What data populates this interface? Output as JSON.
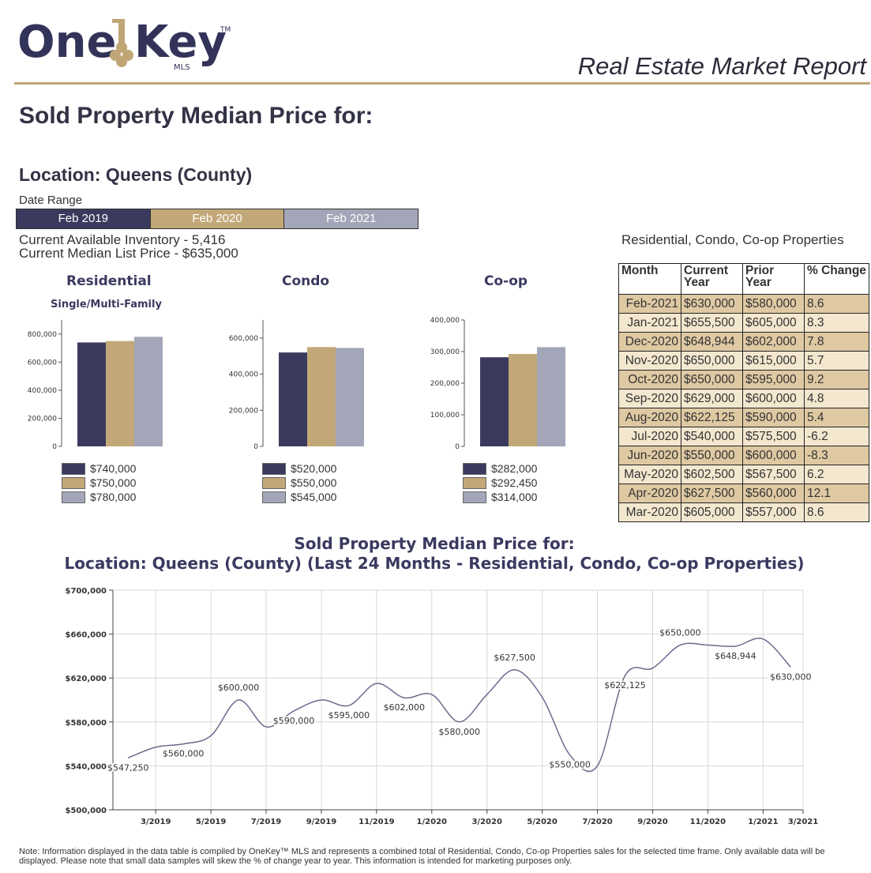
{
  "header": {
    "logo_text": "One Key",
    "logo_tm": "TM",
    "logo_mls": "MLS",
    "report_title": "Real Estate Market Report"
  },
  "main_title": "Sold Property Median Price for:",
  "location": "Location: Queens (County)",
  "date_range": {
    "label": "Date Range",
    "periods": [
      "Feb 2019",
      "Feb 2020",
      "Feb 2021"
    ],
    "colors": [
      "#3b3a5e",
      "#c2a878",
      "#a3a6b8"
    ]
  },
  "inventory": {
    "available": "Current Available Inventory - 5,416",
    "median_list": "Current Median List Price - $635,000"
  },
  "table": {
    "caption": "Residential, Condo, Co-op Properties",
    "headers": [
      "Month",
      "Current Year",
      "Prior Year",
      "% Change"
    ],
    "rows": [
      [
        "Feb-2021",
        "$630,000",
        "$580,000",
        "8.6"
      ],
      [
        "Jan-2021",
        "$655,500",
        "$605,000",
        "8.3"
      ],
      [
        "Dec-2020",
        "$648,944",
        "$602,000",
        "7.8"
      ],
      [
        "Nov-2020",
        "$650,000",
        "$615,000",
        "5.7"
      ],
      [
        "Oct-2020",
        "$650,000",
        "$595,000",
        "9.2"
      ],
      [
        "Sep-2020",
        "$629,000",
        "$600,000",
        "4.8"
      ],
      [
        "Aug-2020",
        "$622,125",
        "$590,000",
        "5.4"
      ],
      [
        "Jul-2020",
        "$540,000",
        "$575,500",
        "-6.2"
      ],
      [
        "Jun-2020",
        "$550,000",
        "$600,000",
        "-8.3"
      ],
      [
        "May-2020",
        "$602,500",
        "$567,500",
        "6.2"
      ],
      [
        "Apr-2020",
        "$627,500",
        "$560,000",
        "12.1"
      ],
      [
        "Mar-2020",
        "$605,000",
        "$557,000",
        "8.6"
      ]
    ]
  },
  "chart_data": [
    {
      "type": "bar",
      "title": "Residential",
      "subtitle": "Single/Multi-Family",
      "categories": [
        "Feb 2019",
        "Feb 2020",
        "Feb 2021"
      ],
      "values": [
        740000,
        750000,
        780000
      ],
      "legend_labels": [
        "$740,000",
        "$750,000",
        "$780,000"
      ],
      "ylim": [
        0,
        900000
      ],
      "yticks": [
        0,
        200000,
        400000,
        600000,
        800000
      ],
      "ytick_labels": [
        "0",
        "200,000",
        "400,000",
        "600,000",
        "800,000"
      ]
    },
    {
      "type": "bar",
      "title": "Condo",
      "subtitle": "",
      "categories": [
        "Feb 2019",
        "Feb 2020",
        "Feb 2021"
      ],
      "values": [
        520000,
        550000,
        545000
      ],
      "legend_labels": [
        "$520,000",
        "$550,000",
        "$545,000"
      ],
      "ylim": [
        0,
        700000
      ],
      "yticks": [
        0,
        200000,
        400000,
        600000
      ],
      "ytick_labels": [
        "0",
        "200,000",
        "400,000",
        "600,000"
      ]
    },
    {
      "type": "bar",
      "title": "Co-op",
      "subtitle": "",
      "categories": [
        "Feb 2019",
        "Feb 2020",
        "Feb 2021"
      ],
      "values": [
        282000,
        292450,
        314000
      ],
      "legend_labels": [
        "$282,000",
        "$292,450",
        "$314,000"
      ],
      "ylim": [
        0,
        400000
      ],
      "yticks": [
        0,
        100000,
        200000,
        300000,
        400000
      ],
      "ytick_labels": [
        "0",
        "100,000",
        "200,000",
        "300,000",
        "400,000"
      ]
    },
    {
      "type": "line",
      "title": "Sold Property Median Price for:",
      "subtitle": "Location: Queens (County) (Last 24 Months - Residential, Condo, Co-op Properties)",
      "x": [
        "2/2019",
        "3/2019",
        "4/2019",
        "5/2019",
        "6/2019",
        "7/2019",
        "8/2019",
        "9/2019",
        "10/2019",
        "11/2019",
        "12/2019",
        "1/2020",
        "2/2020",
        "3/2020",
        "4/2020",
        "5/2020",
        "6/2020",
        "7/2020",
        "8/2020",
        "9/2020",
        "10/2020",
        "11/2020",
        "12/2020",
        "1/2021",
        "2/2021"
      ],
      "values": [
        547250,
        557000,
        560000,
        567500,
        600000,
        575500,
        590000,
        600000,
        595000,
        615000,
        602000,
        605000,
        580000,
        605000,
        627500,
        602500,
        550000,
        540000,
        622125,
        629000,
        650000,
        650000,
        648944,
        655500,
        630000
      ],
      "point_labels": [
        {
          "i": 0,
          "text": "$547,250"
        },
        {
          "i": 2,
          "text": "$560,000"
        },
        {
          "i": 4,
          "text": "$600,000"
        },
        {
          "i": 6,
          "text": "$590,000"
        },
        {
          "i": 8,
          "text": "$595,000"
        },
        {
          "i": 10,
          "text": "$602,000"
        },
        {
          "i": 12,
          "text": "$580,000"
        },
        {
          "i": 14,
          "text": "$627,500"
        },
        {
          "i": 16,
          "text": "$550,000"
        },
        {
          "i": 18,
          "text": "$622,125"
        },
        {
          "i": 20,
          "text": "$650,000"
        },
        {
          "i": 22,
          "text": "$648,944"
        },
        {
          "i": 24,
          "text": "$630,000"
        }
      ],
      "xtick_labels": [
        "3/2019",
        "5/2019",
        "7/2019",
        "9/2019",
        "11/2019",
        "1/2020",
        "3/2020",
        "5/2020",
        "7/2020",
        "9/2020",
        "11/2020",
        "1/2021",
        "3/2021"
      ],
      "ylim": [
        500000,
        700000
      ],
      "yticks": [
        500000,
        540000,
        580000,
        620000,
        660000,
        700000
      ],
      "ytick_labels": [
        "$500,000",
        "$540,000",
        "$580,000",
        "$620,000",
        "$660,000",
        "$700,000"
      ],
      "grid": true,
      "line_color": "#6b6b8e"
    }
  ],
  "footer_note": "Note: Information displayed in the data table is compiled by OneKey™ MLS and represents a combined total of Residential, Condo, Co-op Properties sales for the selected time frame. Only available data will be displayed. Please note that small data samples will skew the % of change year to year. This information is intended for marketing purposes only."
}
